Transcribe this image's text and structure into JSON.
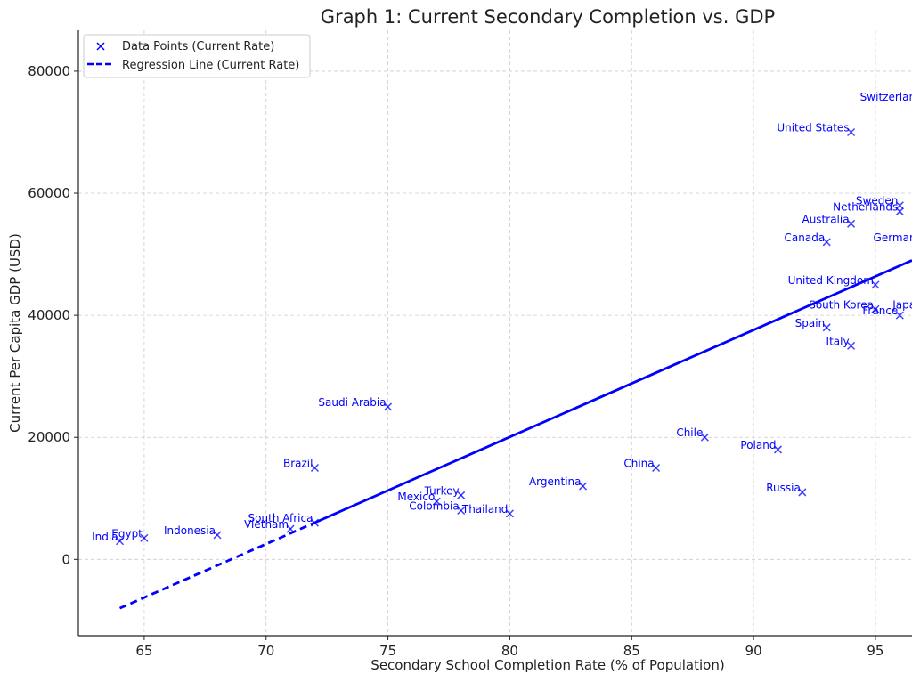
{
  "chart_data": {
    "type": "scatter",
    "title": "Graph 1: Current Secondary Completion vs. GDP",
    "xlabel": "Secondary School Completion Rate (% of Population)",
    "ylabel": "Current Per Capita GDP (USD)",
    "xlim": [
      62.3,
      96.5
    ],
    "ylim": [
      -12500,
      86700
    ],
    "xticks": [
      65,
      70,
      75,
      80,
      85,
      90,
      95
    ],
    "yticks": [
      0,
      20000,
      40000,
      60000,
      80000
    ],
    "grid": true,
    "legend_position": "top-left",
    "colors": {
      "points": "#0000ff",
      "line": "#0000ff"
    },
    "series": [
      {
        "name": "Data Points (Current Rate)",
        "type": "scatter",
        "marker": "x",
        "points": [
          {
            "label": "India",
            "x": 64,
            "y": 3000
          },
          {
            "label": "Egypt",
            "x": 65,
            "y": 3500
          },
          {
            "label": "Indonesia",
            "x": 68,
            "y": 4000
          },
          {
            "label": "South Africa",
            "x": 72,
            "y": 6000
          },
          {
            "label": "Vietnam",
            "x": 71,
            "y": 5000
          },
          {
            "label": "Brazil",
            "x": 72,
            "y": 15000
          },
          {
            "label": "Saudi Arabia",
            "x": 75,
            "y": 25000
          },
          {
            "label": "Mexico",
            "x": 77,
            "y": 9500
          },
          {
            "label": "Turkey",
            "x": 78,
            "y": 10500
          },
          {
            "label": "Colombia",
            "x": 78,
            "y": 8000
          },
          {
            "label": "Thailand",
            "x": 80,
            "y": 7500
          },
          {
            "label": "Argentina",
            "x": 83,
            "y": 12000
          },
          {
            "label": "China",
            "x": 86,
            "y": 15000
          },
          {
            "label": "Chile",
            "x": 88,
            "y": 20000
          },
          {
            "label": "Poland",
            "x": 91,
            "y": 18000
          },
          {
            "label": "Russia",
            "x": 92,
            "y": 11000
          },
          {
            "label": "United States",
            "x": 94,
            "y": 70000
          },
          {
            "label": "Australia",
            "x": 94,
            "y": 55000
          },
          {
            "label": "Canada",
            "x": 93,
            "y": 52000
          },
          {
            "label": "Sweden",
            "x": 96,
            "y": 58000
          },
          {
            "label": "Netherlands",
            "x": 96,
            "y": 57000
          },
          {
            "label": "Germany",
            "x": 97,
            "y": 52000
          },
          {
            "label": "United Kingdom",
            "x": 95,
            "y": 45000
          },
          {
            "label": "South Korea",
            "x": 95,
            "y": 41000
          },
          {
            "label": "France",
            "x": 96,
            "y": 40000
          },
          {
            "label": "Japan",
            "x": 97,
            "y": 41000
          },
          {
            "label": "Spain",
            "x": 93,
            "y": 38000
          },
          {
            "label": "Italy",
            "x": 94,
            "y": 35000
          },
          {
            "label": "Switzerland",
            "x": 97,
            "y": 75000
          }
        ]
      },
      {
        "name": "Regression Line (Current Rate)",
        "type": "line",
        "x": [
          64,
          96.5
        ],
        "y": [
          -8000,
          49000
        ],
        "solid_from_x": 72
      }
    ]
  }
}
